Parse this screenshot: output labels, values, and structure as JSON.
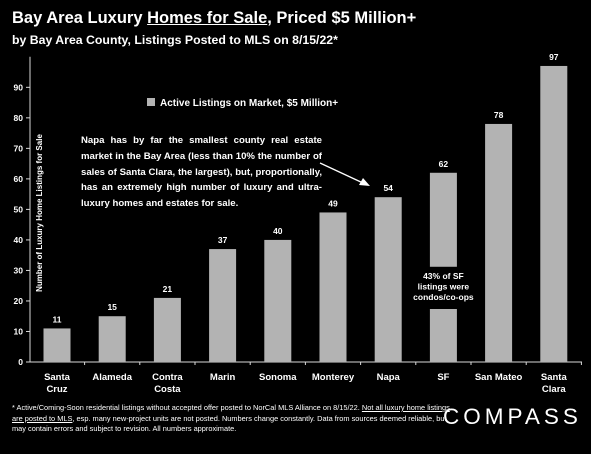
{
  "header": {
    "title_part1": "Bay Area Luxury ",
    "title_underlined": "Homes for Sale",
    "title_part2": ", Priced $5 Million+",
    "subtitle": "by Bay Area County, Listings Posted to MLS on 8/15/22*"
  },
  "chart_data": {
    "type": "bar",
    "categories": [
      "Santa Cruz",
      "Alameda",
      "Contra Costa",
      "Marin",
      "Sonoma",
      "Monterey",
      "Napa",
      "SF",
      "San Mateo",
      "Santa Clara"
    ],
    "category_labels": [
      [
        "Santa",
        "Cruz"
      ],
      [
        "Alameda"
      ],
      [
        "Contra",
        "Costa"
      ],
      [
        "Marin"
      ],
      [
        "Sonoma"
      ],
      [
        "Monterey"
      ],
      [
        "Napa"
      ],
      [
        "SF"
      ],
      [
        "San Mateo"
      ],
      [
        "Santa",
        "Clara"
      ]
    ],
    "series": [
      {
        "name": "Active Listings on Market, $5 Million+",
        "values": [
          11,
          15,
          21,
          37,
          40,
          49,
          54,
          62,
          78,
          97
        ]
      }
    ],
    "data_labels": [
      "11",
      "15",
      "21",
      "37",
      "40",
      "49",
      "54",
      "62",
      "78",
      "97"
    ],
    "ylabel": "Number of Luxury Home Listings for Sale",
    "ylim": [
      0,
      100
    ],
    "yticks": [
      0,
      10,
      20,
      30,
      40,
      50,
      60,
      70,
      80,
      90
    ],
    "bar_color": "#b3b3b3",
    "grid": false,
    "legend_position": "top-left",
    "legend_label": "Active Listings on Market, $5 Million+",
    "bar_note": {
      "category": "SF",
      "lines": [
        "43% of SF",
        "listings were",
        "condos/co-ops"
      ]
    }
  },
  "annotation": "Napa has by far the smallest county real estate market in the Bay Area (less than 10% the number of sales of Santa Clara, the largest), but, proportionally, has an extremely high number of luxury and ultra-luxury homes and estates for sale.",
  "footnote": {
    "part1": "* Active/Coming-Soon residential listings without accepted offer posted to NorCal MLS Alliance on 8/15/22. ",
    "underlined": "Not all luxury home listings are posted to MLS",
    "part2": ", esp. many new-project units are not posted. Numbers change constantly. Data from sources deemed reliable, but may contain errors and subject to revision. All numbers approximate."
  },
  "brand": {
    "logo_text": "COMPASS"
  }
}
